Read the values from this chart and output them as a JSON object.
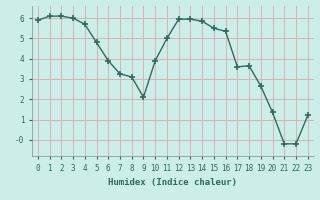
{
  "x": [
    0,
    1,
    2,
    3,
    4,
    5,
    6,
    7,
    8,
    9,
    10,
    11,
    12,
    13,
    14,
    15,
    16,
    17,
    18,
    19,
    20,
    21,
    22,
    23
  ],
  "y": [
    5.9,
    6.1,
    6.1,
    6.0,
    5.7,
    4.8,
    3.9,
    3.25,
    3.1,
    2.1,
    3.9,
    5.0,
    5.95,
    5.95,
    5.85,
    5.5,
    5.35,
    3.6,
    3.65,
    2.65,
    1.35,
    -0.2,
    -0.2,
    1.2
  ],
  "line_color": "#2e6b5e",
  "marker": "+",
  "marker_size": 4,
  "bg_color": "#cceee8",
  "grid_color": "#ddb0b0",
  "xlabel": "Humidex (Indice chaleur)",
  "ylim": [
    -0.8,
    6.6
  ],
  "xlim": [
    -0.5,
    23.5
  ],
  "yticks": [
    0,
    1,
    2,
    3,
    4,
    5,
    6
  ],
  "ytick_labels": [
    "-0",
    "1",
    "2",
    "3",
    "4",
    "5",
    "6"
  ],
  "xticks": [
    0,
    1,
    2,
    3,
    4,
    5,
    6,
    7,
    8,
    9,
    10,
    11,
    12,
    13,
    14,
    15,
    16,
    17,
    18,
    19,
    20,
    21,
    22,
    23
  ],
  "axis_fontsize": 6.5,
  "tick_fontsize": 5.5
}
